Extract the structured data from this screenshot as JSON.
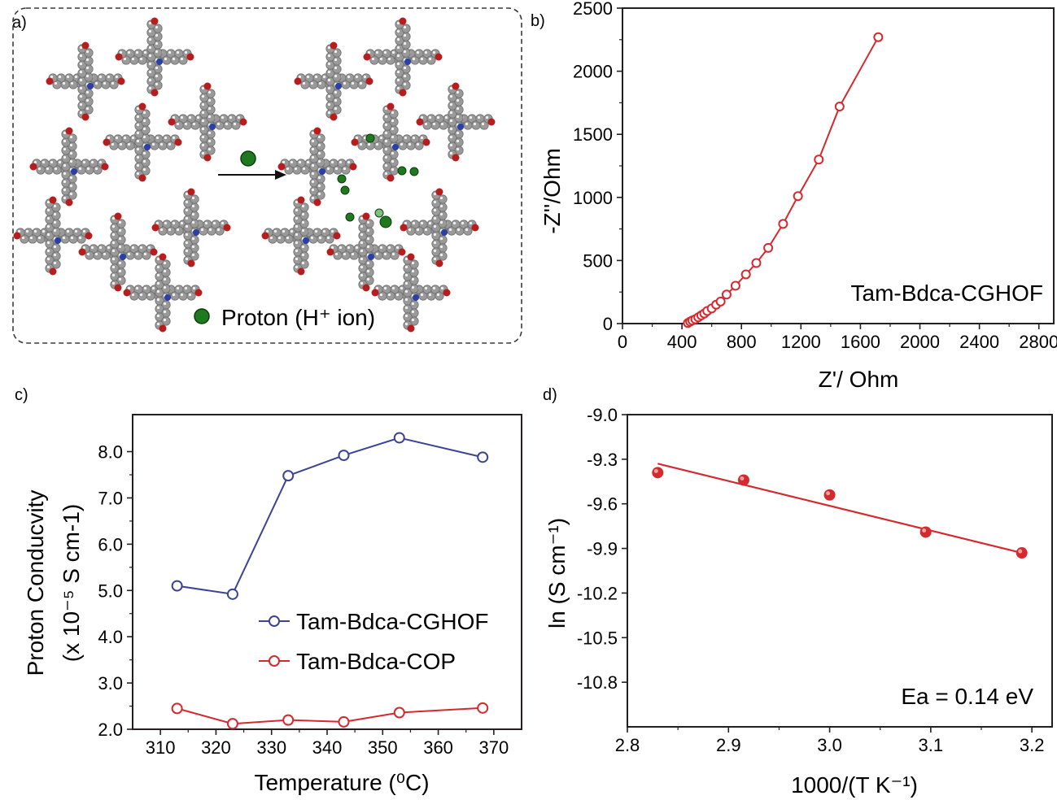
{
  "panel_labels": {
    "a": "a)",
    "b": "b)",
    "c": "c)",
    "d": "d)"
  },
  "panel_a": {
    "legend": "Proton (H⁺ ion)"
  },
  "colors": {
    "red": "#d42a2f",
    "blue": "#3b4395",
    "proton_green": "#1f7a1f",
    "frame_gray": "#a8a8a8",
    "oxygen_red": "#b81d1d",
    "nitrogen_blue": "#2b3fa8"
  },
  "chart_data": [
    {
      "panel": "b",
      "type": "scatter",
      "xlabel": "Z'/ Ohm",
      "ylabel": "-Z''/Ohm",
      "xlim": [
        0,
        2900
      ],
      "ylim": [
        0,
        2500
      ],
      "xticks": [
        "0",
        "400",
        "800",
        "1200",
        "1600",
        "2000",
        "2400",
        "2800"
      ],
      "yticks": [
        "0",
        "500",
        "1000",
        "1500",
        "2000",
        "2500"
      ],
      "annotation": "Tam-Bdca-CGHOF",
      "series": [
        {
          "color": "#d42a2f",
          "x": [
            440,
            455,
            470,
            490,
            510,
            530,
            550,
            570,
            600,
            630,
            660,
            700,
            760,
            830,
            900,
            980,
            1080,
            1180,
            1320,
            1460,
            1720
          ],
          "y": [
            5,
            15,
            25,
            35,
            50,
            65,
            80,
            100,
            120,
            150,
            175,
            230,
            300,
            390,
            480,
            600,
            790,
            1010,
            1300,
            1720,
            2270
          ]
        }
      ]
    },
    {
      "panel": "c",
      "type": "line",
      "xlabel": "Temperature (⁰C)",
      "ylabel": "Proton Conducvity",
      "ylabel2": "(x 10⁻⁵ S  cm-1)",
      "xlim": [
        305,
        375
      ],
      "ylim": [
        2,
        8.8
      ],
      "xticks": [
        "310",
        "320",
        "330",
        "340",
        "350",
        "360",
        "370"
      ],
      "yticks": [
        "2.0",
        "3.0",
        "4.0",
        "5.0",
        "6.0",
        "7.0",
        "8.0"
      ],
      "series": [
        {
          "name": "Tam-Bdca-CGHOF",
          "color": "#3b4395",
          "x": [
            313,
            323,
            333,
            343,
            353,
            368
          ],
          "y": [
            5.1,
            4.92,
            7.48,
            7.92,
            8.3,
            7.88
          ]
        },
        {
          "name": "Tam-Bdca-COP",
          "color": "#d42a2f",
          "x": [
            313,
            323,
            333,
            343,
            353,
            368
          ],
          "y": [
            2.45,
            2.12,
            2.2,
            2.16,
            2.36,
            2.46
          ]
        }
      ]
    },
    {
      "panel": "d",
      "type": "scatter",
      "xlabel": "1000/(T K⁻¹)",
      "ylabel": "ln (S cm⁻¹)",
      "xlim": [
        2.8,
        3.22
      ],
      "ylim": [
        -11.1,
        -9.0
      ],
      "xticks": [
        "2.8",
        "2.9",
        "3.0",
        "3.1",
        "3.2"
      ],
      "yticks": [
        "-9.0",
        "-9.3",
        "-9.6",
        "-9.9",
        "-10.2",
        "-10.5",
        "-10.8"
      ],
      "annotation": "Ea = 0.14 eV",
      "series": [
        {
          "color": "#d42a2f",
          "x": [
            2.83,
            2.915,
            3.0,
            3.095,
            3.19
          ],
          "y": [
            -9.39,
            -9.44,
            -9.54,
            -9.79,
            -9.93
          ]
        }
      ],
      "fit": {
        "x": [
          2.83,
          3.19
        ],
        "y": [
          -9.33,
          -9.93
        ]
      }
    }
  ]
}
